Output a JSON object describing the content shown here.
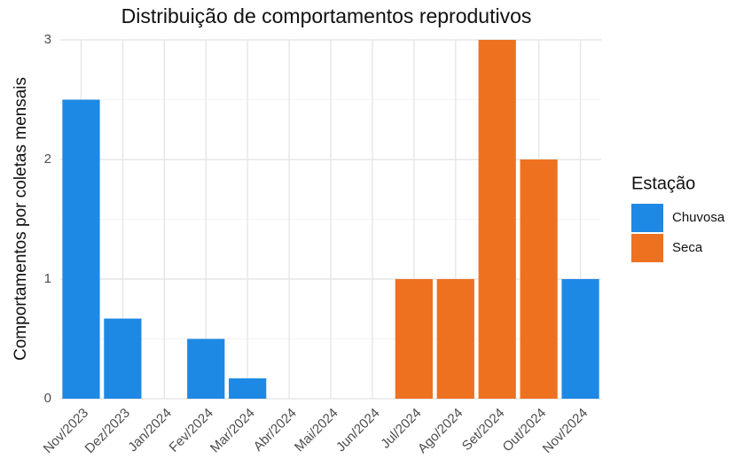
{
  "chart_data": {
    "type": "bar",
    "title": "Distribuição de comportamentos reprodutivos",
    "y_label": "Comportamentos por coletas mensais",
    "legend_title": "Estação",
    "categories": [
      "Nov/2023",
      "Dez/2023",
      "Jan/2024",
      "Fev/2024",
      "Mar/2024",
      "Abr/2024",
      "Mai/2024",
      "Jun/2024",
      "Jul/2024",
      "Ago/2024",
      "Set/2024",
      "Out/2024",
      "Nov/2024"
    ],
    "series": [
      {
        "name": "Chuvosa",
        "color": "#1E88E5",
        "values": [
          2.5,
          0.67,
          0,
          0.5,
          0.17,
          0,
          null,
          null,
          null,
          null,
          null,
          null,
          1
        ]
      },
      {
        "name": "Seca",
        "color": "#EE7120",
        "values": [
          null,
          null,
          null,
          null,
          null,
          null,
          0,
          0,
          1,
          1,
          3,
          2,
          null
        ]
      }
    ],
    "ylim": [
      0,
      3
    ],
    "yticks": [
      0,
      1,
      2,
      3
    ],
    "minor_yticks": [
      0.5,
      1.5,
      2.5
    ],
    "grid": true,
    "legend": "right"
  }
}
